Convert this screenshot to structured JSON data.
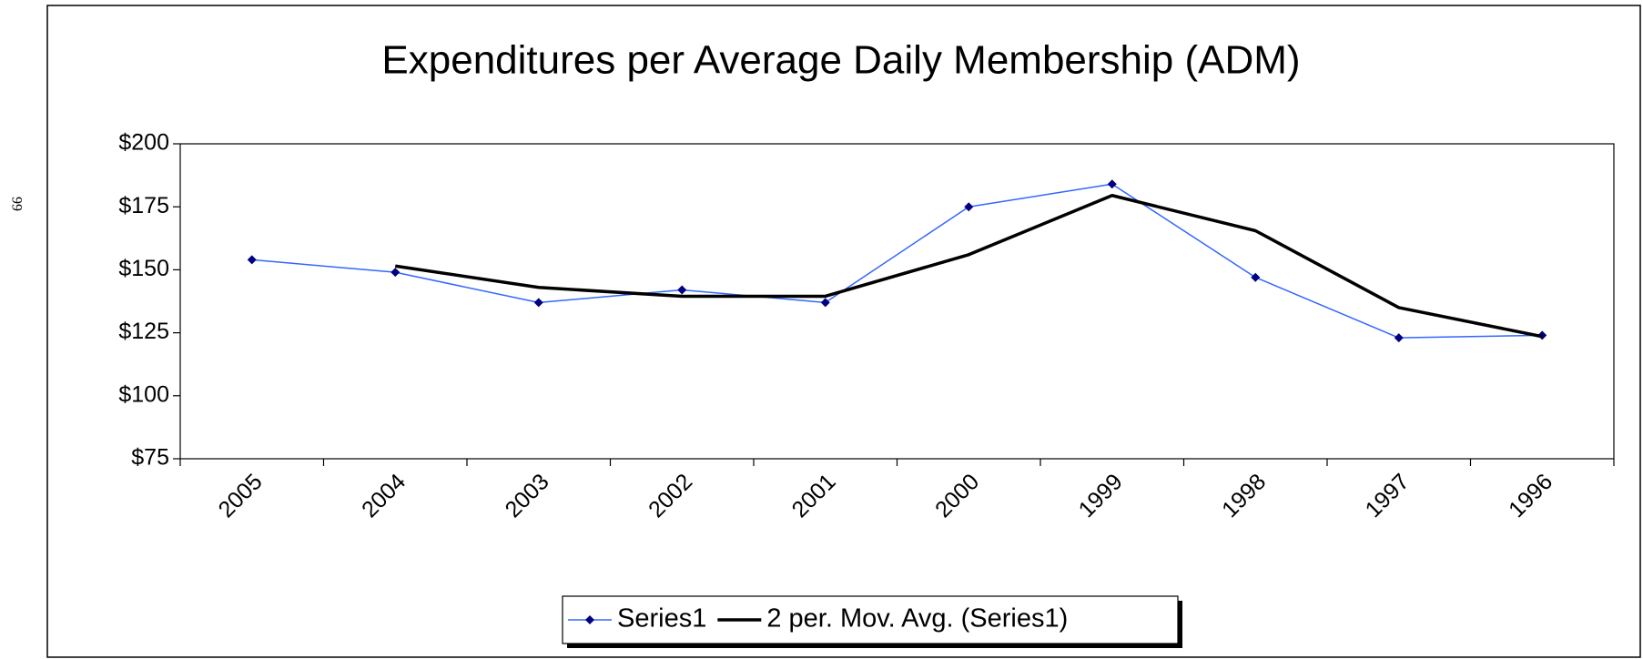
{
  "page_number": "99",
  "chart_data": {
    "type": "line",
    "title": "Expenditures per Average Daily Membership (ADM)",
    "categories": [
      "2005",
      "2004",
      "2003",
      "2002",
      "2001",
      "2000",
      "1999",
      "1998",
      "1997",
      "1996"
    ],
    "series": [
      {
        "name": "Series1",
        "color": "#3366ff",
        "marker_color": "#000080",
        "marker": "diamond",
        "line_width": 1.5,
        "values": [
          154,
          149,
          137,
          142,
          137,
          175,
          184,
          147,
          123,
          124
        ]
      },
      {
        "name": "2 per. Mov. Avg. (Series1)",
        "color": "#000000",
        "line_width": 3.5,
        "values": [
          null,
          151.5,
          143,
          139.5,
          139.5,
          156,
          179.5,
          165.5,
          135,
          123.5
        ]
      }
    ],
    "ylim": [
      75,
      200
    ],
    "yticks": [
      {
        "value": 75,
        "label": "$75"
      },
      {
        "value": 100,
        "label": "$100"
      },
      {
        "value": 125,
        "label": "$125"
      },
      {
        "value": 150,
        "label": "$150"
      },
      {
        "value": 175,
        "label": "$175"
      },
      {
        "value": 200,
        "label": "$200"
      }
    ],
    "grid": false,
    "legend": "bottom"
  }
}
